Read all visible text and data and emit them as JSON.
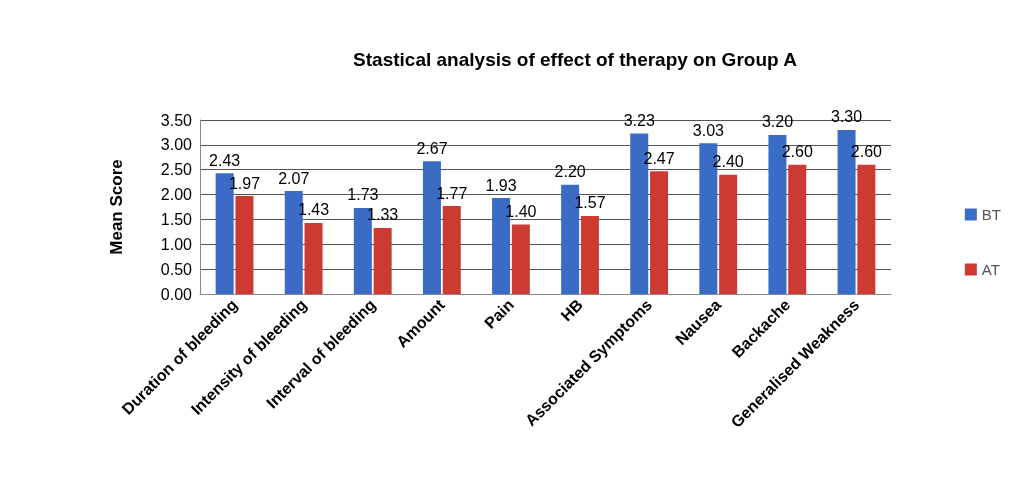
{
  "chart_data": {
    "type": "bar",
    "title": "Stastical analysis of effect of therapy on Group A",
    "ylabel": "Mean Score",
    "categories": [
      "Duration of bleeding",
      "Intensity of bleeding",
      "Interval of bleeding",
      "Amount",
      "Pain",
      "HB",
      "Associated Symptoms",
      "Nausea",
      "Backache",
      "Generalised Weakness"
    ],
    "series": [
      {
        "name": "BT",
        "color": "#3a6cc6",
        "values": [
          2.43,
          2.07,
          1.73,
          2.67,
          1.93,
          2.2,
          3.23,
          3.03,
          3.2,
          3.3
        ],
        "value_labels": [
          "2.43",
          "2.07",
          "1.73",
          "2.67",
          "1.93",
          "2.20",
          "3.23",
          "3.03",
          "3.20",
          "3.30"
        ]
      },
      {
        "name": "AT",
        "color": "#cc3a32",
        "values": [
          1.97,
          1.43,
          1.33,
          1.77,
          1.4,
          1.57,
          2.47,
          2.4,
          2.6,
          2.6
        ],
        "value_labels": [
          "1.97",
          "1.43",
          "1.33",
          "1.77",
          "1.40",
          "1.57",
          "2.47",
          "2.40",
          "2.60",
          "2.60"
        ]
      }
    ],
    "ylim": [
      0,
      3.5
    ],
    "yticks": [
      {
        "value": 0,
        "label": "0.00"
      },
      {
        "value": 0.5,
        "label": "0.50"
      },
      {
        "value": 1,
        "label": "1.00"
      },
      {
        "value": 1.5,
        "label": "1.50"
      },
      {
        "value": 2,
        "label": "2.00"
      },
      {
        "value": 2.5,
        "label": "2.50"
      },
      {
        "value": 3,
        "label": "3.00"
      },
      {
        "value": 3.5,
        "label": "3.50"
      }
    ],
    "grid": "y",
    "legend": "right"
  }
}
